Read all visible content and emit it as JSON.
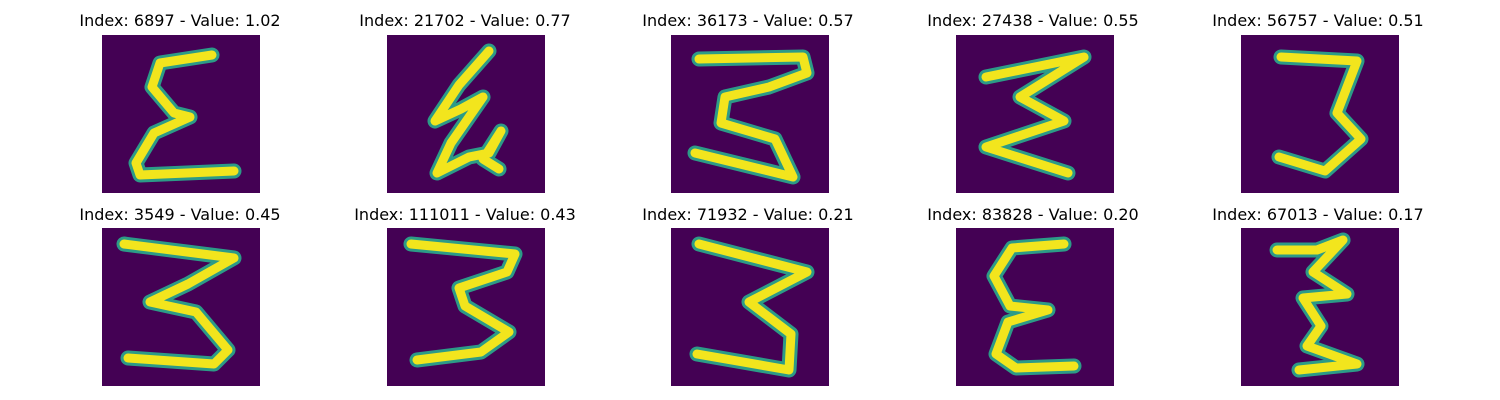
{
  "colors": {
    "background": "#440154",
    "stroke_core": "#f2e51d",
    "stroke_halo": "#2ba38a"
  },
  "panels": [
    {
      "title": "Index: 6897 - Value: 1.02"
    },
    {
      "title": "Index: 21702 - Value: 0.77"
    },
    {
      "title": "Index: 36173 - Value: 0.57"
    },
    {
      "title": "Index: 27438 - Value: 0.55"
    },
    {
      "title": "Index: 56757 - Value: 0.51"
    },
    {
      "title": "Index: 3549 - Value: 0.45"
    },
    {
      "title": "Index: 111011 - Value: 0.43"
    },
    {
      "title": "Index: 71932 - Value: 0.21"
    },
    {
      "title": "Index: 83828 - Value: 0.20"
    },
    {
      "title": "Index: 67013 - Value: 0.17"
    }
  ]
}
